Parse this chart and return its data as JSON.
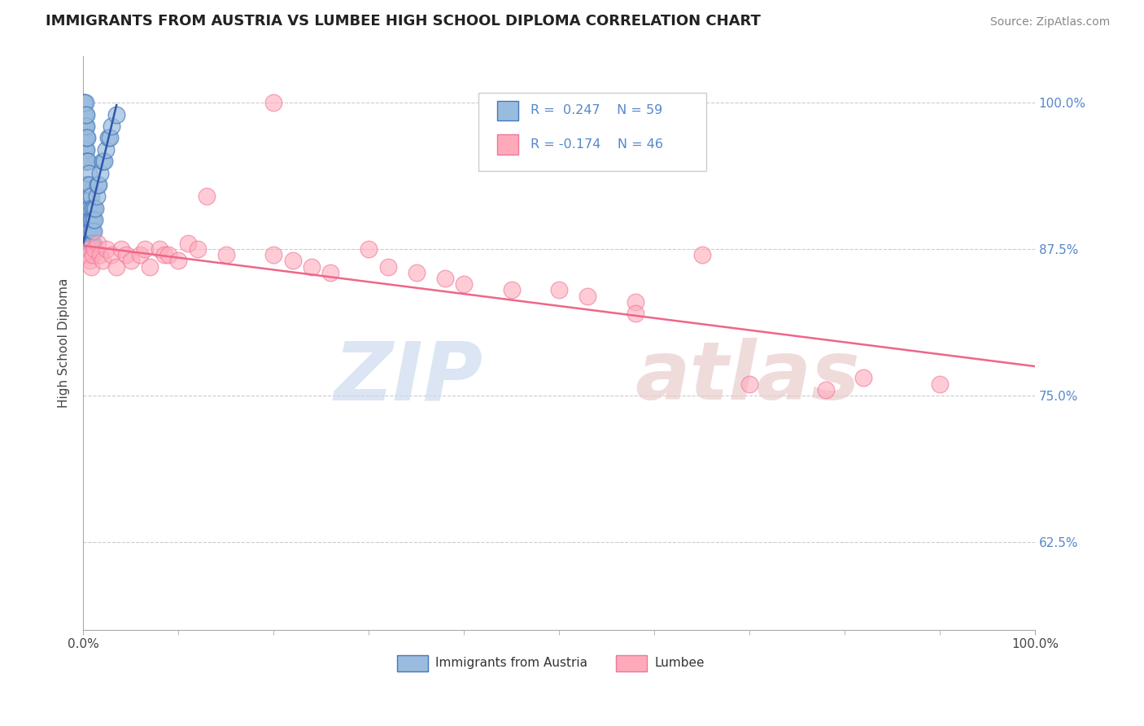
{
  "title": "IMMIGRANTS FROM AUSTRIA VS LUMBEE HIGH SCHOOL DIPLOMA CORRELATION CHART",
  "source": "Source: ZipAtlas.com",
  "ylabel": "High School Diploma",
  "legend_blue_label": "Immigrants from Austria",
  "legend_pink_label": "Lumbee",
  "legend_r_blue": "R =  0.247",
  "legend_n_blue": "N = 59",
  "legend_r_pink": "R = -0.174",
  "legend_n_pink": "N = 46",
  "xlim": [
    0.0,
    1.0
  ],
  "ylim": [
    0.55,
    1.04
  ],
  "yticks": [
    0.625,
    0.75,
    0.875,
    1.0
  ],
  "ytick_labels": [
    "62.5%",
    "75.0%",
    "87.5%",
    "100.0%"
  ],
  "xticks": [
    0.0,
    1.0
  ],
  "xtick_labels": [
    "0.0%",
    "100.0%"
  ],
  "blue_scatter_color": "#99bbdd",
  "blue_edge_color": "#4477bb",
  "pink_scatter_color": "#ffaabb",
  "pink_edge_color": "#ee7799",
  "blue_line_color": "#3355aa",
  "pink_line_color": "#ee6688",
  "right_tick_color": "#5588cc",
  "blue_scatter_x": [
    0.001,
    0.001,
    0.001,
    0.001,
    0.001,
    0.001,
    0.002,
    0.002,
    0.002,
    0.002,
    0.002,
    0.002,
    0.002,
    0.003,
    0.003,
    0.003,
    0.003,
    0.003,
    0.003,
    0.003,
    0.003,
    0.004,
    0.004,
    0.004,
    0.004,
    0.004,
    0.005,
    0.005,
    0.005,
    0.005,
    0.006,
    0.006,
    0.006,
    0.006,
    0.007,
    0.007,
    0.007,
    0.008,
    0.008,
    0.008,
    0.009,
    0.009,
    0.01,
    0.01,
    0.011,
    0.011,
    0.012,
    0.013,
    0.014,
    0.015,
    0.016,
    0.018,
    0.02,
    0.022,
    0.024,
    0.026,
    0.028,
    0.03,
    0.035
  ],
  "blue_scatter_y": [
    0.96,
    0.97,
    0.98,
    0.99,
    1.0,
    1.0,
    0.93,
    0.95,
    0.96,
    0.97,
    0.98,
    0.99,
    1.0,
    0.9,
    0.92,
    0.93,
    0.95,
    0.96,
    0.97,
    0.98,
    0.99,
    0.89,
    0.91,
    0.93,
    0.95,
    0.97,
    0.89,
    0.91,
    0.93,
    0.95,
    0.88,
    0.9,
    0.92,
    0.94,
    0.89,
    0.91,
    0.93,
    0.88,
    0.9,
    0.92,
    0.89,
    0.91,
    0.88,
    0.9,
    0.89,
    0.91,
    0.9,
    0.91,
    0.92,
    0.93,
    0.93,
    0.94,
    0.95,
    0.95,
    0.96,
    0.97,
    0.97,
    0.98,
    0.99
  ],
  "pink_scatter_x": [
    0.005,
    0.006,
    0.007,
    0.008,
    0.01,
    0.012,
    0.015,
    0.018,
    0.02,
    0.025,
    0.03,
    0.035,
    0.04,
    0.045,
    0.05,
    0.06,
    0.065,
    0.07,
    0.08,
    0.085,
    0.09,
    0.1,
    0.11,
    0.12,
    0.13,
    0.15,
    0.2,
    0.22,
    0.24,
    0.26,
    0.3,
    0.32,
    0.35,
    0.38,
    0.4,
    0.45,
    0.5,
    0.53,
    0.58,
    0.65,
    0.7,
    0.78,
    0.82,
    0.9,
    0.58,
    0.2
  ],
  "pink_scatter_y": [
    0.875,
    0.87,
    0.865,
    0.86,
    0.87,
    0.875,
    0.88,
    0.87,
    0.865,
    0.875,
    0.87,
    0.86,
    0.875,
    0.87,
    0.865,
    0.87,
    0.875,
    0.86,
    0.875,
    0.87,
    0.87,
    0.865,
    0.88,
    0.875,
    0.92,
    0.87,
    0.87,
    0.865,
    0.86,
    0.855,
    0.875,
    0.86,
    0.855,
    0.85,
    0.845,
    0.84,
    0.84,
    0.835,
    0.83,
    0.87,
    0.76,
    0.755,
    0.765,
    0.76,
    0.82,
    1.0
  ],
  "blue_trendline_x": [
    0.0,
    0.035
  ],
  "blue_trendline_y_start": 0.88,
  "blue_trendline_y_end": 0.998,
  "pink_trendline_x": [
    0.0,
    1.0
  ],
  "pink_trendline_y_start": 0.878,
  "pink_trendline_y_end": 0.775
}
